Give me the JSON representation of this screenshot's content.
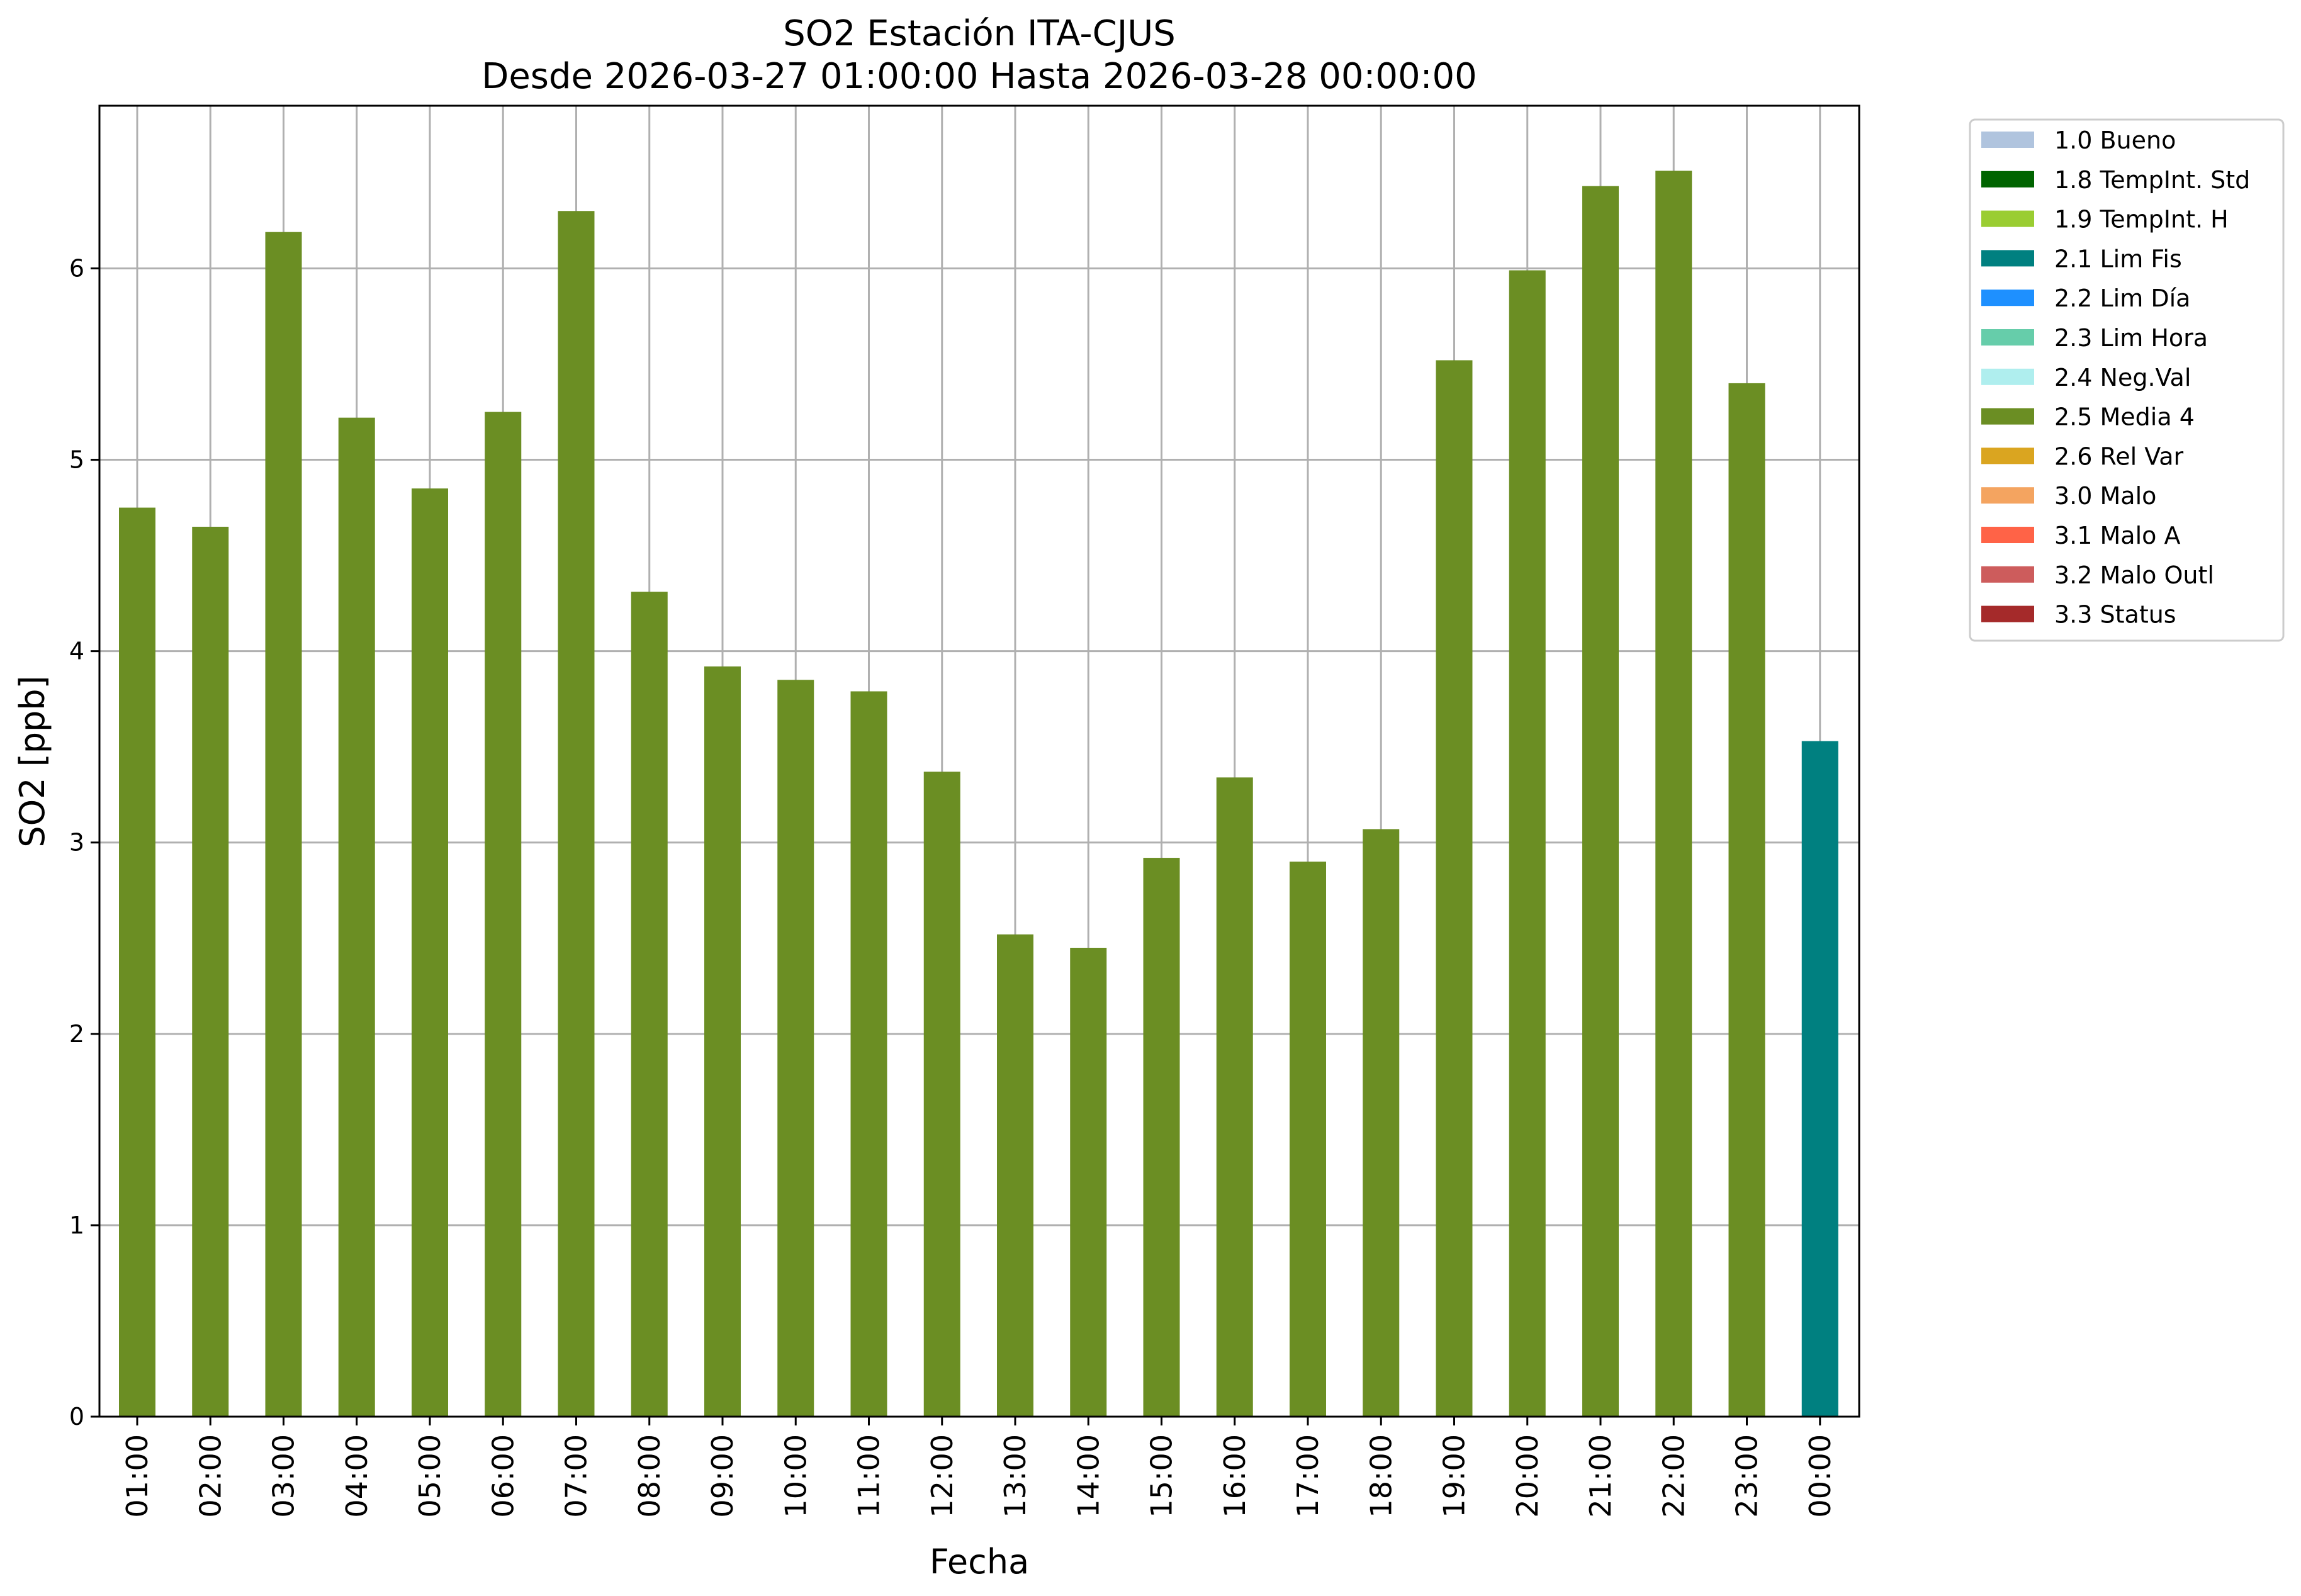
{
  "chart_data": {
    "type": "bar",
    "title": "SO2 Estación ITA-CJUS",
    "subtitle": "Desde 2026-03-27 01:00:00 Hasta 2026-03-28 00:00:00",
    "xlabel": "Fecha",
    "ylabel": "SO2 [ppb]",
    "ylim": [
      0,
      6.85
    ],
    "yticks": [
      0,
      1,
      2,
      3,
      4,
      5,
      6
    ],
    "grid": true,
    "legend_position": "outside-top-right",
    "categories": [
      "01:00",
      "02:00",
      "03:00",
      "04:00",
      "05:00",
      "06:00",
      "07:00",
      "08:00",
      "09:00",
      "10:00",
      "11:00",
      "12:00",
      "13:00",
      "14:00",
      "15:00",
      "16:00",
      "17:00",
      "18:00",
      "19:00",
      "20:00",
      "21:00",
      "22:00",
      "23:00",
      "00:00"
    ],
    "values": [
      4.75,
      4.65,
      6.19,
      5.22,
      4.85,
      5.25,
      6.3,
      4.31,
      3.92,
      3.85,
      3.79,
      3.37,
      2.52,
      2.45,
      2.92,
      3.34,
      2.9,
      3.07,
      5.52,
      5.99,
      6.43,
      6.51,
      5.4,
      3.53
    ],
    "flags": [
      "2.5 Media 4",
      "2.5 Media 4",
      "2.5 Media 4",
      "2.5 Media 4",
      "2.5 Media 4",
      "2.5 Media 4",
      "2.5 Media 4",
      "2.5 Media 4",
      "2.5 Media 4",
      "2.5 Media 4",
      "2.5 Media 4",
      "2.5 Media 4",
      "2.5 Media 4",
      "2.5 Media 4",
      "2.5 Media 4",
      "2.5 Media 4",
      "2.5 Media 4",
      "2.5 Media 4",
      "2.5 Media 4",
      "2.5 Media 4",
      "2.5 Media 4",
      "2.5 Media 4",
      "2.5 Media 4",
      "2.1 Lim Fis"
    ],
    "legend": [
      {
        "label": "1.0 Bueno",
        "color": "#b0c4de"
      },
      {
        "label": "1.8 TempInt. Std",
        "color": "#006400"
      },
      {
        "label": "1.9 TempInt. H",
        "color": "#9acd32"
      },
      {
        "label": "2.1 Lim Fis",
        "color": "#008080"
      },
      {
        "label": "2.2 Lim Día",
        "color": "#1e90ff"
      },
      {
        "label": "2.3 Lim Hora",
        "color": "#66cdaa"
      },
      {
        "label": "2.4 Neg.Val",
        "color": "#afeeee"
      },
      {
        "label": "2.5 Media 4",
        "color": "#6b8e23"
      },
      {
        "label": "2.6 Rel Var",
        "color": "#daa520"
      },
      {
        "label": "3.0 Malo",
        "color": "#f4a460"
      },
      {
        "label": "3.1 Malo A",
        "color": "#ff6347"
      },
      {
        "label": "3.2 Malo Outl",
        "color": "#cd5c5c"
      },
      {
        "label": "3.3 Status",
        "color": "#a52a2a"
      }
    ]
  }
}
